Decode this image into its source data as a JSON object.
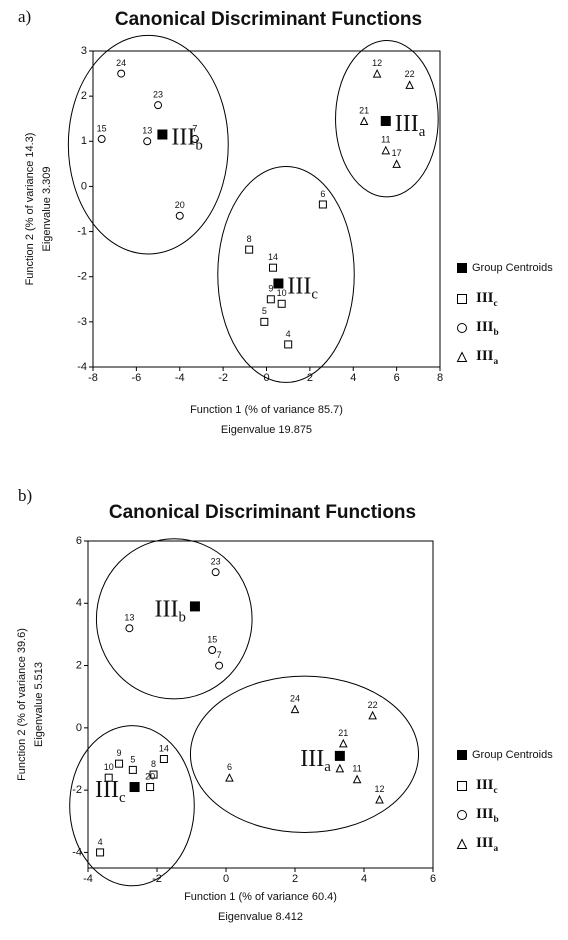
{
  "chart_data": [
    {
      "type": "scatter",
      "panel": "a)",
      "title": "Canonical Discriminant Functions",
      "xlabel": [
        "Function 1 (% of variance 85.7)",
        "Eigenvalue 19.875"
      ],
      "ylabel": [
        "Function 2 (% of variance 14.3)",
        "Eigenvalue 3.309"
      ],
      "xlim": [
        -8,
        8
      ],
      "xticks": [
        -8,
        -6,
        -4,
        -2,
        0,
        2,
        4,
        6,
        8
      ],
      "ylim": [
        -4,
        3
      ],
      "yticks": [
        -4,
        -3,
        -2,
        -1,
        0,
        1,
        2,
        3
      ],
      "legend_title": "Group Centroids",
      "series": [
        {
          "name": "III",
          "subscript": "c",
          "marker": "square",
          "color": "#000000",
          "labels": [
            "6",
            "8",
            "14",
            "9",
            "10",
            "5",
            "4"
          ],
          "x": [
            2.6,
            -0.8,
            0.3,
            0.2,
            0.7,
            -0.1,
            1.0
          ],
          "y": [
            -0.4,
            -1.4,
            -1.8,
            -2.5,
            -2.6,
            -3.0,
            -3.5
          ],
          "centroid": {
            "x": 0.55,
            "y": -2.15
          }
        },
        {
          "name": "III",
          "subscript": "b",
          "marker": "circle",
          "color": "#000000",
          "labels": [
            "24",
            "23",
            "15",
            "13",
            "7",
            "20"
          ],
          "x": [
            -6.7,
            -5.0,
            -7.6,
            -5.5,
            -3.3,
            -4.0
          ],
          "y": [
            2.5,
            1.8,
            1.05,
            1.0,
            1.05,
            -0.65
          ],
          "centroid": {
            "x": -4.8,
            "y": 1.15
          }
        },
        {
          "name": "III",
          "subscript": "a",
          "marker": "triangle",
          "color": "#000000",
          "labels": [
            "12",
            "22",
            "21",
            "11",
            "17"
          ],
          "x": [
            5.1,
            6.6,
            4.5,
            5.5,
            6.0
          ],
          "y": [
            2.5,
            2.25,
            1.45,
            0.8,
            0.5
          ],
          "centroid": {
            "x": 5.5,
            "y": 1.45
          }
        }
      ]
    },
    {
      "type": "scatter",
      "panel": "b)",
      "title": "Canonical Discriminant Functions",
      "xlabel": [
        "Function 1 (% of variance 60.4)",
        "Eigenvalue 8.412"
      ],
      "ylabel": [
        "Function 2 (% of variance 39.6)",
        "Eigenvalue 5.513"
      ],
      "xlim": [
        -4,
        6
      ],
      "xticks": [
        -4,
        -2,
        0,
        2,
        4,
        6
      ],
      "ylim": [
        -4.5,
        6
      ],
      "yticks": [
        -4,
        -2,
        0,
        2,
        4,
        6
      ],
      "legend_title": "Group Centroids",
      "series": [
        {
          "name": "III",
          "subscript": "c",
          "marker": "square",
          "color": "#000000",
          "labels": [
            "9",
            "10",
            "5",
            "14",
            "8",
            "20",
            "4"
          ],
          "x": [
            -3.1,
            -3.4,
            -2.7,
            -1.8,
            -2.1,
            -2.2,
            -3.65
          ],
          "y": [
            -1.15,
            -1.6,
            -1.35,
            -1.0,
            -1.5,
            -1.9,
            -4.0
          ],
          "centroid": {
            "x": -2.65,
            "y": -1.9
          }
        },
        {
          "name": "III",
          "subscript": "b",
          "marker": "circle",
          "color": "#000000",
          "labels": [
            "13",
            "23",
            "15",
            "7"
          ],
          "x": [
            -2.8,
            -0.3,
            -0.4,
            -0.2
          ],
          "y": [
            3.2,
            5.0,
            2.5,
            2.0
          ],
          "centroid": {
            "x": -0.9,
            "y": 3.9
          }
        },
        {
          "name": "III",
          "subscript": "a",
          "marker": "triangle",
          "color": "#000000",
          "labels": [
            "24",
            "22",
            "21",
            "17",
            "11",
            "12",
            "6"
          ],
          "x": [
            2.0,
            4.25,
            3.4,
            3.3,
            3.8,
            4.45,
            0.1
          ],
          "y": [
            0.6,
            0.4,
            -0.5,
            -1.3,
            -1.65,
            -2.3,
            -1.6
          ],
          "centroid": {
            "x": 3.3,
            "y": -0.9
          }
        }
      ]
    }
  ]
}
